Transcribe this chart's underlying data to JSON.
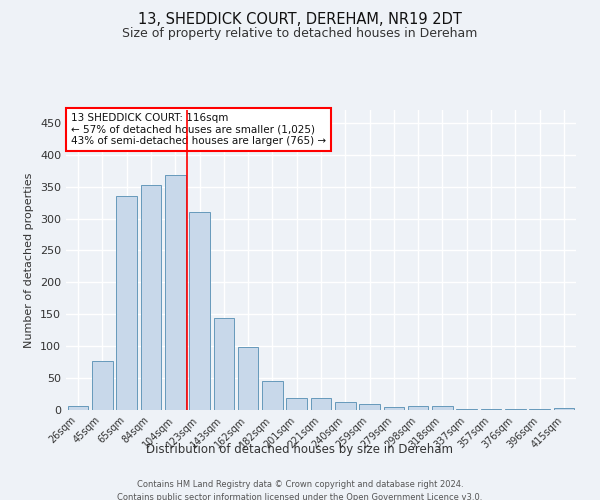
{
  "title": "13, SHEDDICK COURT, DEREHAM, NR19 2DT",
  "subtitle": "Size of property relative to detached houses in Dereham",
  "xlabel": "Distribution of detached houses by size in Dereham",
  "ylabel": "Number of detached properties",
  "bar_labels": [
    "26sqm",
    "45sqm",
    "65sqm",
    "84sqm",
    "104sqm",
    "123sqm",
    "143sqm",
    "162sqm",
    "182sqm",
    "201sqm",
    "221sqm",
    "240sqm",
    "259sqm",
    "279sqm",
    "298sqm",
    "318sqm",
    "337sqm",
    "357sqm",
    "376sqm",
    "396sqm",
    "415sqm"
  ],
  "bar_values": [
    6,
    76,
    335,
    353,
    368,
    310,
    144,
    99,
    46,
    19,
    19,
    13,
    10,
    4,
    6,
    6,
    2,
    2,
    1,
    1,
    3
  ],
  "bar_color": "#c8d8ea",
  "bar_edge_color": "#6699bb",
  "annotation_title": "13 SHEDDICK COURT: 116sqm",
  "annotation_line1": "← 57% of detached houses are smaller (1,025)",
  "annotation_line2": "43% of semi-detached houses are larger (765) →",
  "ylim": [
    0,
    470
  ],
  "yticks": [
    0,
    50,
    100,
    150,
    200,
    250,
    300,
    350,
    400,
    450
  ],
  "footer_line1": "Contains HM Land Registry data © Crown copyright and database right 2024.",
  "footer_line2": "Contains public sector information licensed under the Open Government Licence v3.0.",
  "bg_color": "#eef2f7",
  "grid_color": "#ffffff"
}
